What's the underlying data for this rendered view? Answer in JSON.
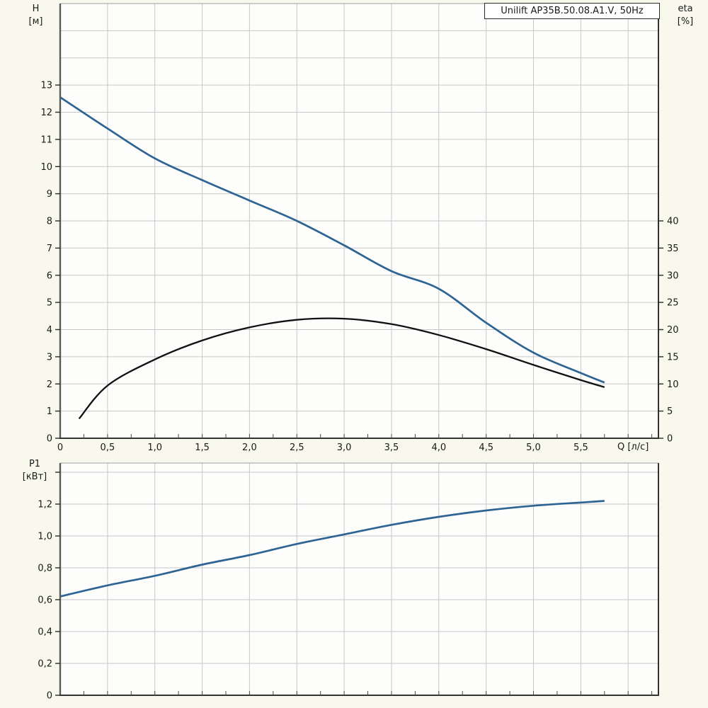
{
  "title": "Unilift AP35B.50.08.A1.V, 50Hz",
  "colors": {
    "background": "#f8f8ec",
    "plot_background": "#fdfdfb",
    "grid": "#c8c8c8",
    "axis_dark": "#333333",
    "axis_left": "#5a5a5a",
    "axis_top": "#a0a0a0",
    "tick_mark": "#2b2b2b",
    "curve_primary": "#2e6494",
    "curve_secondary": "#111111"
  },
  "h_axis": {
    "line1": "H",
    "line2": "[м]"
  },
  "eta_axis": {
    "line1": "eta",
    "line2": "[%]"
  },
  "q_axis_label": "Q [л/с]",
  "p1_axis": {
    "line1": "P1",
    "line2": "[кВт]"
  },
  "chart_data": [
    {
      "type": "line",
      "name": "hq-efficiency-chart",
      "title": "Unilift AP35B.50.08.A1.V, 50Hz",
      "xlabel": "Q [л/с]",
      "ylabel": "H [м]",
      "ylabel_right": "eta [%]",
      "xlim": [
        0,
        6.32
      ],
      "ylim": [
        0,
        16
      ],
      "ylim_right": [
        0,
        80
      ],
      "grid": true,
      "legend": false,
      "x_grid_step": 0.5,
      "y_grid_step": 1,
      "x_minor_tick_step": 0.25,
      "x_tick_values": [
        0,
        0.5,
        1.0,
        1.5,
        2.0,
        2.5,
        3.0,
        3.5,
        4.0,
        4.5,
        5.0,
        5.5
      ],
      "x_tick_labels": [
        "0",
        "0,5",
        "1,0",
        "1,5",
        "2,0",
        "2,5",
        "3,0",
        "3,5",
        "4,0",
        "4,5",
        "5,0",
        "5,5"
      ],
      "y_tick_values": [
        0,
        1,
        2,
        3,
        4,
        5,
        6,
        7,
        8,
        9,
        10,
        11,
        12,
        13
      ],
      "y_tick_labels": [
        "0",
        "1",
        "2",
        "3",
        "4",
        "5",
        "6",
        "7",
        "8",
        "9",
        "10",
        "11",
        "12",
        "13"
      ],
      "y_tick_values_right": [
        0,
        5,
        10,
        15,
        20,
        25,
        30,
        35,
        40
      ],
      "y_tick_labels_right": [
        "0",
        "5",
        "10",
        "15",
        "20",
        "25",
        "30",
        "35",
        "40"
      ],
      "series": [
        {
          "name": "head-curve",
          "axis": "left",
          "color_key": "curve_primary",
          "stroke_width": 2.7,
          "x": [
            0,
            0.5,
            1.0,
            1.5,
            2.0,
            2.5,
            3.0,
            3.5,
            4.0,
            4.5,
            5.0,
            5.5,
            5.75
          ],
          "y": [
            12.55,
            11.4,
            10.3,
            9.5,
            8.75,
            8.0,
            7.1,
            6.15,
            5.5,
            4.25,
            3.15,
            2.4,
            2.05
          ]
        },
        {
          "name": "efficiency-curve",
          "axis": "right",
          "color_key": "curve_secondary",
          "stroke_width": 2.3,
          "x": [
            0.2,
            0.5,
            1.0,
            1.5,
            2.0,
            2.5,
            3.0,
            3.5,
            4.0,
            4.5,
            5.0,
            5.5,
            5.75
          ],
          "y": [
            3.6,
            9.7,
            14.5,
            18.0,
            20.4,
            21.8,
            22.0,
            21.0,
            19.0,
            16.4,
            13.5,
            10.7,
            9.4
          ]
        }
      ]
    },
    {
      "type": "line",
      "name": "power-chart",
      "xlabel": "",
      "ylabel": "P1 [кВт]",
      "xlim": [
        0,
        6.32
      ],
      "ylim": [
        0,
        1.458
      ],
      "grid": true,
      "legend": false,
      "x_grid_step": 0.5,
      "y_grid_step": 0.2,
      "x_minor_tick_step": 0.25,
      "x_tick_values": [],
      "x_tick_labels": [],
      "y_tick_values": [
        0,
        0.2,
        0.4,
        0.6,
        0.8,
        1.0,
        1.2,
        1.4
      ],
      "y_tick_labels": [
        "0",
        "0,2",
        "0,4",
        "0,6",
        "0,8",
        "1,0",
        "1,2",
        ""
      ],
      "series": [
        {
          "name": "p1-curve",
          "axis": "left",
          "color_key": "curve_primary",
          "stroke_width": 2.7,
          "x": [
            0,
            0.5,
            1.0,
            1.5,
            2.0,
            2.5,
            3.0,
            3.5,
            4.0,
            4.5,
            5.0,
            5.5,
            5.75
          ],
          "y": [
            0.62,
            0.69,
            0.75,
            0.82,
            0.88,
            0.95,
            1.01,
            1.07,
            1.12,
            1.16,
            1.19,
            1.21,
            1.22
          ]
        }
      ]
    }
  ]
}
